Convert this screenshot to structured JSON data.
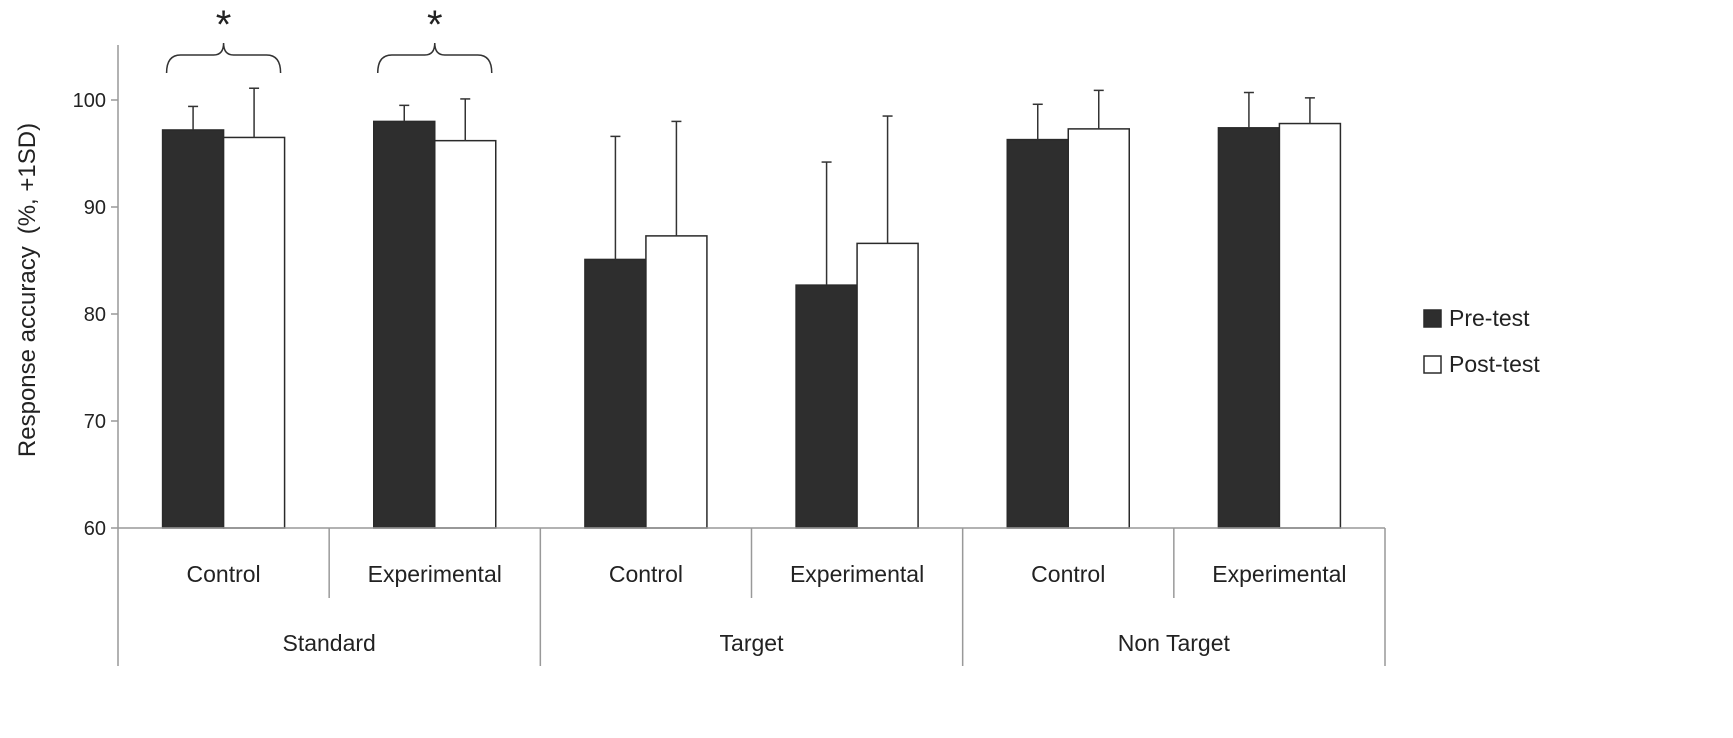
{
  "chart_data": {
    "type": "bar",
    "title": "",
    "ylabel": "Response accuracy",
    "ylabel_suffix": "(%, +1SD)",
    "ylim": [
      60,
      100
    ],
    "yticks": [
      60,
      70,
      80,
      90,
      100
    ],
    "groups": [
      "Standard",
      "Target",
      "Non Target"
    ],
    "categories": [
      "Control",
      "Experimental",
      "Control",
      "Experimental",
      "Control",
      "Experimental"
    ],
    "series": [
      {
        "name": "Pre-test",
        "color": "#2e2e2e",
        "values": [
          97.2,
          98.0,
          85.1,
          82.7,
          96.3,
          97.4
        ],
        "sd": [
          2.2,
          1.5,
          11.5,
          11.5,
          3.3,
          3.3
        ]
      },
      {
        "name": "Post-test",
        "color": "#ffffff",
        "values": [
          96.5,
          96.2,
          87.3,
          86.6,
          97.3,
          97.8
        ],
        "sd": [
          4.6,
          3.9,
          10.7,
          11.9,
          3.6,
          2.4
        ]
      }
    ],
    "significance": [
      {
        "category_index": 0,
        "label": "*"
      },
      {
        "category_index": 1,
        "label": "*"
      }
    ],
    "grid": false,
    "legend_position": "right"
  }
}
